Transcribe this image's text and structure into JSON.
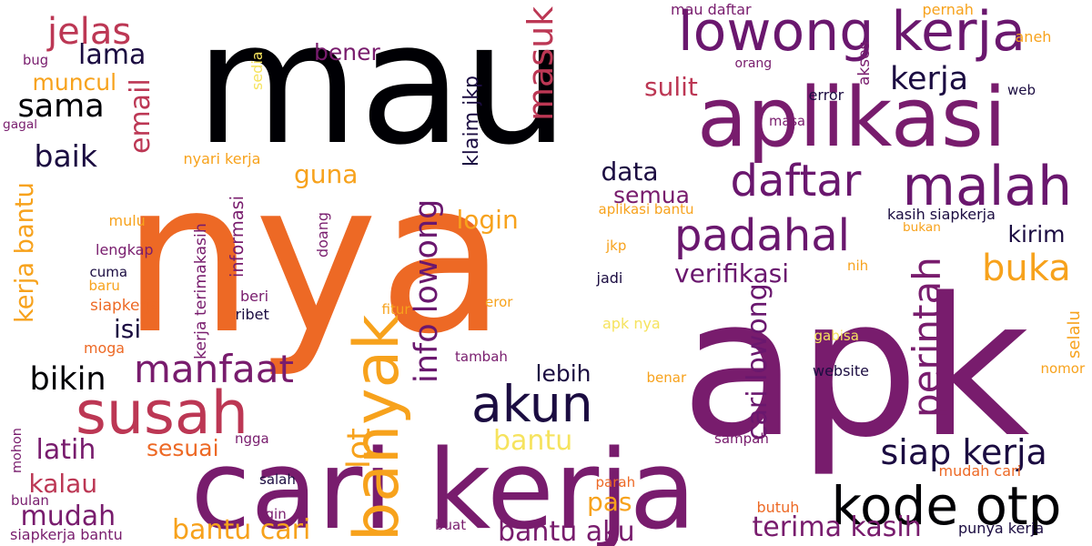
{
  "palette": {
    "black": "#000004",
    "navy": "#1b0c41",
    "purple": "#6a176e",
    "violet": "#781c6d",
    "crimson": "#bc3754",
    "orange": "#ed6925",
    "amber": "#f7a21c",
    "yellow": "#f6e35e"
  },
  "words": [
    {
      "text": "mau",
      "color": "black"
    },
    {
      "text": "nya",
      "color": "orange"
    },
    {
      "text": "apk",
      "color": "violet"
    },
    {
      "text": "cari kerja",
      "color": "violet"
    },
    {
      "text": "aplikasi",
      "color": "violet"
    },
    {
      "text": "lowong kerja",
      "color": "purple"
    },
    {
      "text": "kode otp",
      "color": "black"
    },
    {
      "text": "susah",
      "color": "crimson"
    },
    {
      "text": "banyak",
      "color": "amber"
    },
    {
      "text": "akun",
      "color": "navy"
    },
    {
      "text": "padahal",
      "color": "purple"
    },
    {
      "text": "daftar",
      "color": "purple"
    },
    {
      "text": "malah",
      "color": "purple"
    },
    {
      "text": "info lowong",
      "color": "purple"
    },
    {
      "text": "masuk",
      "color": "crimson"
    },
    {
      "text": "jelas",
      "color": "crimson"
    },
    {
      "text": "siap kerja",
      "color": "navy"
    },
    {
      "text": "manfaat",
      "color": "violet"
    },
    {
      "text": "perintah",
      "color": "violet"
    },
    {
      "text": "buka",
      "color": "amber"
    },
    {
      "text": "lot",
      "color": "amber"
    },
    {
      "text": "bikin",
      "color": "black"
    },
    {
      "text": "sama",
      "color": "black"
    },
    {
      "text": "baik",
      "color": "navy"
    },
    {
      "text": "kerja",
      "color": "navy"
    },
    {
      "text": "terima kasih",
      "color": "violet"
    },
    {
      "text": "bantu cari",
      "color": "amber"
    },
    {
      "text": "bantu aku",
      "color": "violet"
    },
    {
      "text": "cari lowong",
      "color": "purple"
    },
    {
      "text": "bantu",
      "color": "yellow"
    },
    {
      "text": "verifikasi",
      "color": "purple"
    },
    {
      "text": "mudah",
      "color": "violet"
    },
    {
      "text": "latih",
      "color": "violet"
    },
    {
      "text": "kalau",
      "color": "crimson"
    },
    {
      "text": "login",
      "color": "amber"
    },
    {
      "text": "data",
      "color": "navy"
    },
    {
      "text": "sulit",
      "color": "crimson"
    },
    {
      "text": "bener",
      "color": "violet"
    },
    {
      "text": "lama",
      "color": "navy"
    },
    {
      "text": "muncul",
      "color": "amber"
    },
    {
      "text": "guna",
      "color": "amber"
    },
    {
      "text": "email",
      "color": "crimson"
    },
    {
      "text": "isi",
      "color": "navy"
    },
    {
      "text": "lebih",
      "color": "navy"
    },
    {
      "text": "sesuai",
      "color": "orange"
    },
    {
      "text": "klaim jkp",
      "color": "navy"
    },
    {
      "text": "semua",
      "color": "violet"
    },
    {
      "text": "pas",
      "color": "amber"
    },
    {
      "text": "kirim",
      "color": "navy"
    },
    {
      "text": "kerja bantu",
      "color": "amber"
    },
    {
      "text": "mau daftar",
      "color": "violet"
    },
    {
      "text": "pernah",
      "color": "amber"
    },
    {
      "text": "aneh",
      "color": "amber"
    },
    {
      "text": "orang",
      "color": "violet"
    },
    {
      "text": "akses",
      "color": "violet"
    },
    {
      "text": "error",
      "color": "navy"
    },
    {
      "text": "web",
      "color": "navy"
    },
    {
      "text": "masa",
      "color": "violet"
    },
    {
      "text": "bug",
      "color": "violet"
    },
    {
      "text": "sedia",
      "color": "yellow"
    },
    {
      "text": "gagal",
      "color": "violet"
    },
    {
      "text": "nyari kerja",
      "color": "amber"
    },
    {
      "text": "aplikasi bantu",
      "color": "amber"
    },
    {
      "text": "kasih siapkerja",
      "color": "navy"
    },
    {
      "text": "bukan",
      "color": "amber"
    },
    {
      "text": "informasi",
      "color": "violet"
    },
    {
      "text": "doang",
      "color": "violet"
    },
    {
      "text": "mulu",
      "color": "amber"
    },
    {
      "text": "lengkap",
      "color": "violet"
    },
    {
      "text": "jkp",
      "color": "amber"
    },
    {
      "text": "cuma",
      "color": "navy"
    },
    {
      "text": "baru",
      "color": "amber"
    },
    {
      "text": "siapkerja",
      "color": "orange"
    },
    {
      "text": "moga",
      "color": "orange"
    },
    {
      "text": "beri",
      "color": "violet"
    },
    {
      "text": "ribet",
      "color": "navy"
    },
    {
      "text": "kerja terimakasih",
      "color": "violet"
    },
    {
      "text": "fitur",
      "color": "amber"
    },
    {
      "text": "eror",
      "color": "amber"
    },
    {
      "text": "apk nya",
      "color": "yellow"
    },
    {
      "text": "jadi",
      "color": "navy"
    },
    {
      "text": "nih",
      "color": "amber"
    },
    {
      "text": "gabisa",
      "color": "yellow"
    },
    {
      "text": "tambah",
      "color": "violet"
    },
    {
      "text": "benar",
      "color": "amber"
    },
    {
      "text": "website",
      "color": "navy"
    },
    {
      "text": "nomor",
      "color": "amber"
    },
    {
      "text": "selalu",
      "color": "amber"
    },
    {
      "text": "ngga",
      "color": "violet"
    },
    {
      "text": "sampah",
      "color": "violet"
    },
    {
      "text": "salah",
      "color": "navy"
    },
    {
      "text": "mohon",
      "color": "violet"
    },
    {
      "text": "parah",
      "color": "orange"
    },
    {
      "text": "mudah cari",
      "color": "orange"
    },
    {
      "text": "bulan",
      "color": "violet"
    },
    {
      "text": "gin",
      "color": "violet"
    },
    {
      "text": "siapkerja bantu",
      "color": "violet"
    },
    {
      "text": "butuh",
      "color": "orange"
    },
    {
      "text": "buat",
      "color": "violet"
    },
    {
      "text": "punya kerja",
      "color": "navy"
    }
  ]
}
